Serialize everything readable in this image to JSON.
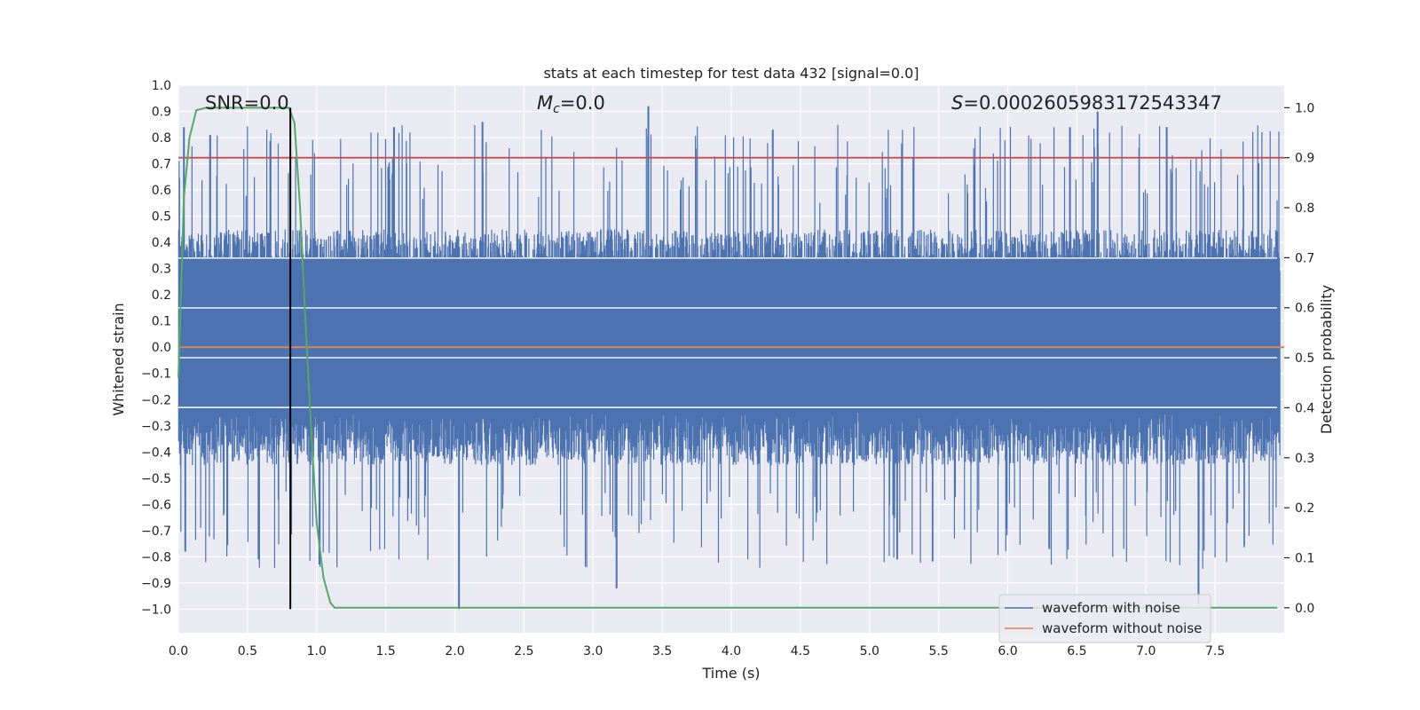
{
  "chart_data": {
    "type": "line",
    "title": "stats at each timestep for test data 432 [signal=0.0]",
    "xlabel": "Time (s)",
    "ylabel": "Whitened strain",
    "ylabel_right": "Detection probability",
    "xlim": [
      0.0,
      8.0
    ],
    "ylim": [
      -1.09,
      1.0
    ],
    "ylim_right": [
      -0.05,
      1.045
    ],
    "x_ticks": [
      "0.0",
      "0.5",
      "1.0",
      "1.5",
      "2.0",
      "2.5",
      "3.0",
      "3.5",
      "4.0",
      "4.5",
      "5.0",
      "5.5",
      "6.0",
      "6.5",
      "7.0",
      "7.5"
    ],
    "x_tick_values": [
      0.0,
      0.5,
      1.0,
      1.5,
      2.0,
      2.5,
      3.0,
      3.5,
      4.0,
      4.5,
      5.0,
      5.5,
      6.0,
      6.5,
      7.0,
      7.5
    ],
    "y_ticks": [
      "1.0",
      "0.9",
      "0.8",
      "0.7",
      "0.6",
      "0.5",
      "0.4",
      "0.3",
      "0.2",
      "0.1",
      "0.0",
      "−0.1",
      "−0.2",
      "−0.3",
      "−0.4",
      "−0.5",
      "−0.6",
      "−0.7",
      "−0.8",
      "−0.9",
      "−1.0"
    ],
    "y_tick_values": [
      1.0,
      0.9,
      0.8,
      0.7,
      0.6,
      0.5,
      0.4,
      0.3,
      0.2,
      0.1,
      0.0,
      -0.1,
      -0.2,
      -0.3,
      -0.4,
      -0.5,
      -0.6,
      -0.7,
      -0.8,
      -0.9,
      -1.0
    ],
    "y_right_ticks": [
      "1.0",
      "0.9",
      "0.8",
      "0.7",
      "0.6",
      "0.5",
      "0.4",
      "0.3",
      "0.2",
      "0.1",
      "0.0"
    ],
    "y_right_tick_values": [
      1.0,
      0.9,
      0.8,
      0.7,
      0.6,
      0.5,
      0.4,
      0.3,
      0.2,
      0.1,
      0.0
    ],
    "annotations": {
      "snr": "SNR=0.0",
      "mc_symbol": "M",
      "mc_subscript": "c",
      "mc_value": "=0.0",
      "s_symbol": "S",
      "s_value": "=0.0002605983172543347"
    },
    "series": [
      {
        "name": "waveform with noise",
        "color": "#4c72b0",
        "noise_band": [
          -0.45,
          0.45
        ],
        "noise_extremes": [
          -1.0,
          0.92
        ]
      },
      {
        "name": "waveform without noise",
        "color": "#dd8452",
        "values": 0.0
      },
      {
        "name": "Detection probability",
        "color": "#55a868",
        "axis": "right",
        "x": [
          0.0,
          0.04,
          0.08,
          0.13,
          0.2,
          0.3,
          0.4,
          0.5,
          0.6,
          0.7,
          0.8,
          0.84,
          0.88,
          0.92,
          0.96,
          1.0,
          1.05,
          1.1,
          1.13,
          1.2,
          2.0,
          3.0,
          4.0,
          5.0,
          6.0,
          7.0,
          7.95
        ],
        "values": [
          0.46,
          0.82,
          0.94,
          0.995,
          1.0,
          1.0,
          1.0,
          1.0,
          1.0,
          1.0,
          1.0,
          0.97,
          0.8,
          0.57,
          0.36,
          0.17,
          0.06,
          0.01,
          0.0,
          0.0,
          0.0,
          0.0,
          0.0,
          0.0,
          0.0,
          0.0,
          0.0
        ]
      }
    ],
    "threshold_line": {
      "axis": "right",
      "value": 0.9,
      "color": "#c44e52"
    },
    "marker_line": {
      "x": 0.81,
      "color": "#000000"
    },
    "legend": {
      "placement": "lower-right",
      "entries": [
        "waveform with noise",
        "waveform without noise"
      ]
    },
    "grid": true
  }
}
